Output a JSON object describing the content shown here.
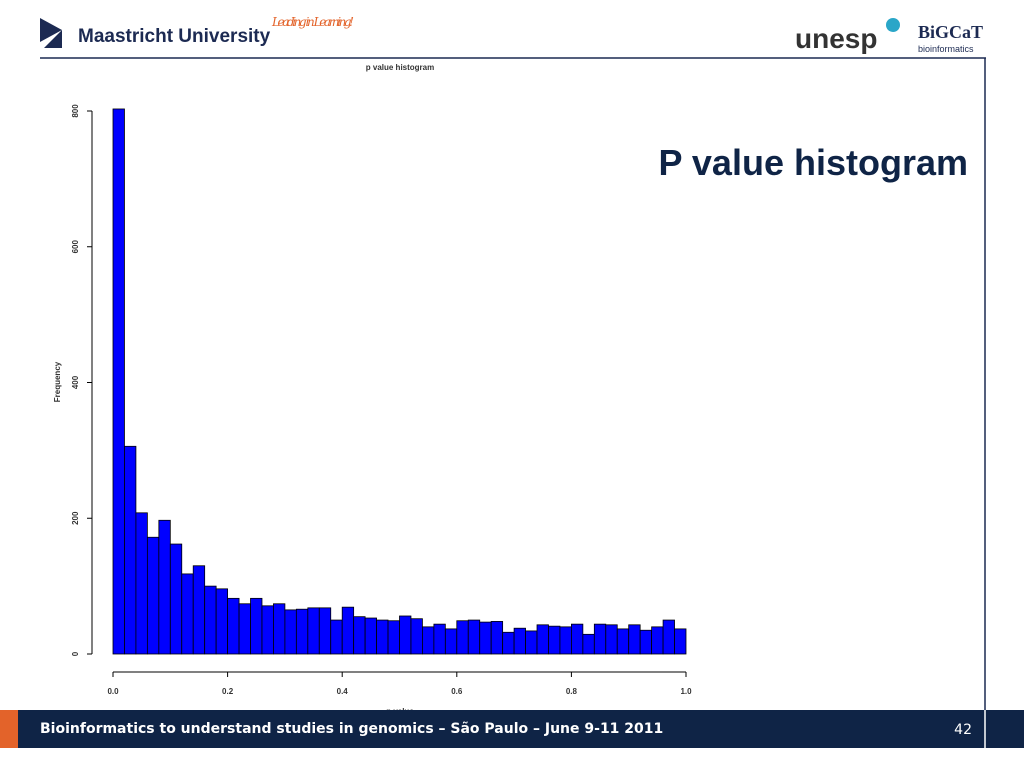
{
  "slide": {
    "university": "Maastricht University",
    "motto": "Leading in Learning!",
    "partner": "unesp",
    "group": "BiGCaT",
    "group_sub": "bioinformatics",
    "title": "P value histogram",
    "footer": "Bioinformatics to understand studies in genomics – São Paulo – June 9-11 2011",
    "page": "42"
  },
  "chart_data": {
    "type": "histogram",
    "title": "p value histogram",
    "x_label": "p value",
    "y_label": "Frequency",
    "color": "#0000ff",
    "bins": [
      0,
      0.02,
      0.04,
      0.06,
      0.08,
      0.1,
      0.12,
      0.14,
      0.16,
      0.18,
      0.2,
      0.22,
      0.24,
      0.26,
      0.28,
      0.3,
      0.32,
      0.34,
      0.36,
      0.38,
      0.4,
      0.42,
      0.44,
      0.46,
      0.48,
      0.5,
      0.52,
      0.54,
      0.56,
      0.58,
      0.6,
      0.62,
      0.64,
      0.66,
      0.68,
      0.7,
      0.72,
      0.74,
      0.76,
      0.78,
      0.8,
      0.82,
      0.84,
      0.86,
      0.88,
      0.9,
      0.92,
      0.94,
      0.96,
      0.98,
      1
    ],
    "values": [
      803,
      306,
      208,
      172,
      197,
      162,
      118,
      130,
      100,
      96,
      82,
      74,
      82,
      71,
      74,
      65,
      66,
      68,
      68,
      50,
      69,
      55,
      53,
      50,
      49,
      56,
      52,
      40,
      44,
      37,
      49,
      50,
      47,
      48,
      32,
      38,
      34,
      43,
      41,
      40,
      44,
      29,
      44,
      43,
      37,
      43,
      35,
      40,
      50,
      37
    ],
    "xlim": [
      0,
      1
    ],
    "ylim": [
      0,
      800
    ],
    "xticks": [
      {
        "value": 0,
        "label": "0.0"
      },
      0.2,
      0.4,
      0.6,
      0.8,
      {
        "value": 1,
        "label": "1.0"
      }
    ],
    "yticks": [
      0,
      200,
      400,
      600,
      800
    ]
  }
}
